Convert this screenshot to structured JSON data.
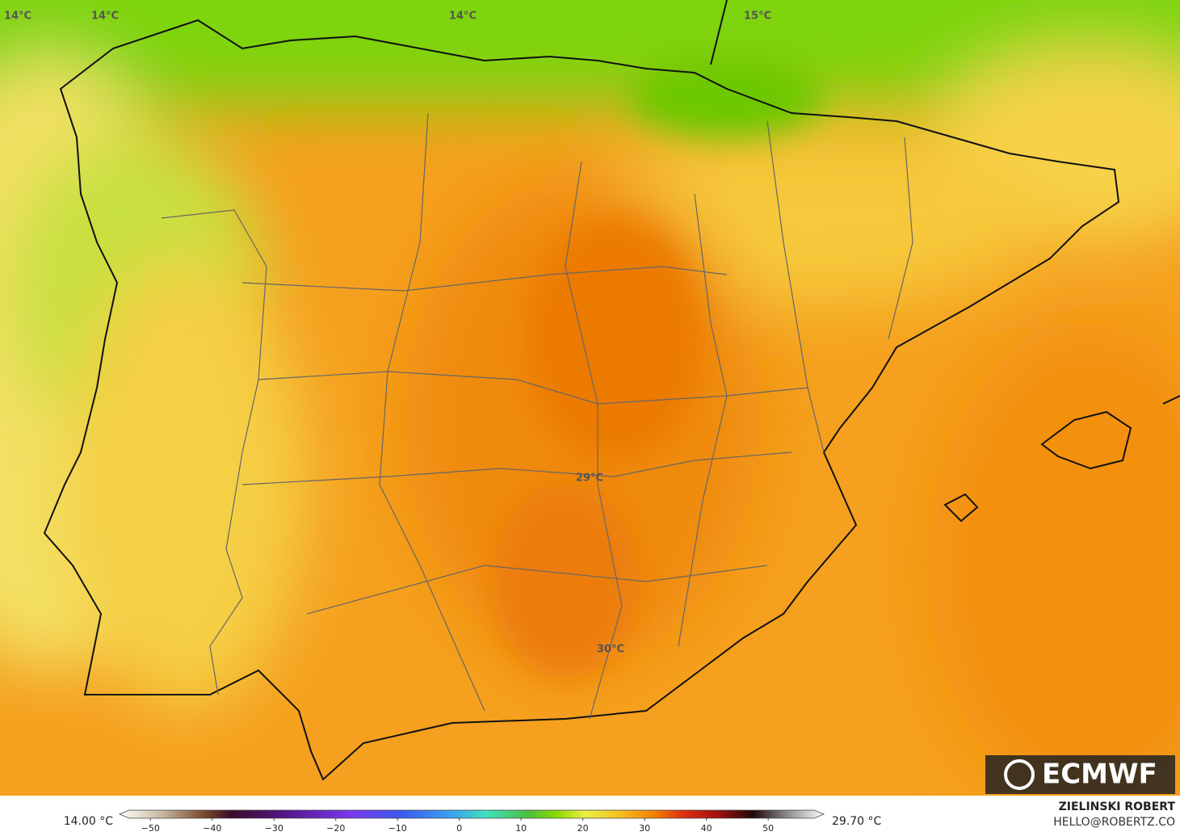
{
  "map": {
    "contour_labels": [
      {
        "text": "14°C"
      },
      {
        "text": "14°C"
      },
      {
        "text": "14°C"
      },
      {
        "text": "15°C"
      },
      {
        "text": "29°C"
      },
      {
        "text": "30°C"
      }
    ],
    "logo": "ECMWF",
    "colorbar": {
      "min_label": "14.00 °C",
      "max_label": "29.70 °C",
      "range": [
        -55,
        59
      ],
      "ticks": [
        {
          "value": -50,
          "label": "−50"
        },
        {
          "value": -40,
          "label": "−40"
        },
        {
          "value": -30,
          "label": "−30"
        },
        {
          "value": -20,
          "label": "−20"
        },
        {
          "value": -10,
          "label": "−10"
        },
        0,
        10,
        20,
        30,
        40,
        50
      ]
    },
    "credit": {
      "name": "ZIELINSKI ROBERT",
      "contact": "HELLO@ROBERTZ.CO"
    }
  }
}
